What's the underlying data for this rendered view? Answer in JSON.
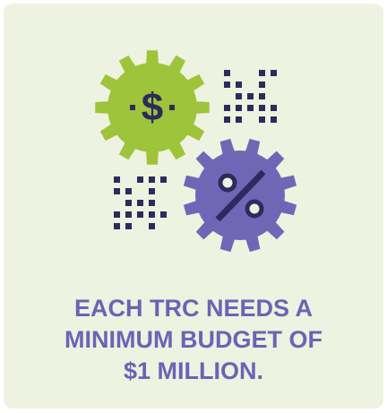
{
  "headline": {
    "lines": [
      "EACH TRC NEEDS A",
      "MINIMUM BUDGET OF",
      "$1 MILLION."
    ]
  },
  "gear_symbol": "$"
}
